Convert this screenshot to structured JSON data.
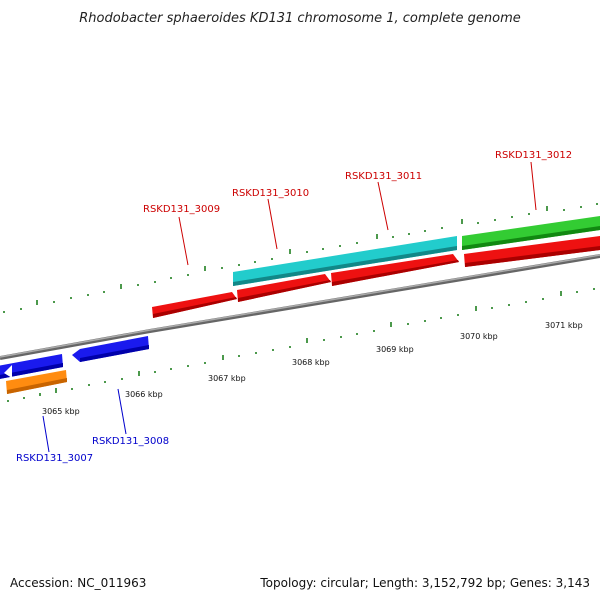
{
  "title": "Rhodobacter sphaeroides KD131 chromosome 1, complete genome",
  "footer": {
    "accession": "Accession: NC_011963",
    "topology": "Topology: circular; Length: 3,152,792 bp; Genes: 3,143"
  },
  "colors": {
    "red_gene": "#ee1111",
    "blue_gene": "#1111ee",
    "cyan_gene": "#22cccc",
    "green_gene": "#33cc33",
    "orange_gene": "#ff8c10",
    "backbone": "#888888",
    "tick": "#117711",
    "red_label": "#cc0000",
    "blue_label": "#0000cc"
  },
  "scale_labels": [
    "3065 kbp",
    "3066 kbp",
    "3067 kbp",
    "3068 kbp",
    "3069 kbp",
    "3070 kbp",
    "3071 kbp"
  ],
  "gene_labels": {
    "g3007": "RSKD131_3007",
    "g3008": "RSKD131_3008",
    "g3009": "RSKD131_3009",
    "g3010": "RSKD131_3010",
    "g3011": "RSKD131_3011",
    "g3012": "RSKD131_3012"
  }
}
